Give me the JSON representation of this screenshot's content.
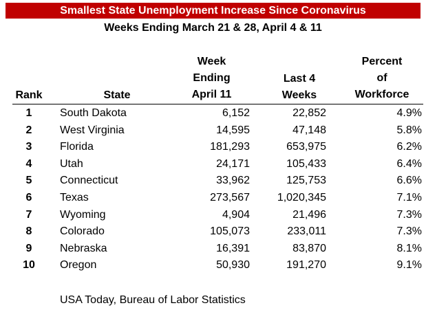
{
  "chart_data": {
    "type": "table",
    "title": "Smallest State Unemployment Increase Since Coronavirus",
    "subtitle": "Weeks Ending March 21 & 28, April 4 & 11",
    "headers": {
      "rank": "Rank",
      "state": "State",
      "week": [
        "Week",
        "Ending",
        "April 11"
      ],
      "last4": [
        "Last 4",
        "Weeks"
      ],
      "pct": [
        "Percent",
        "of",
        "Workforce"
      ]
    },
    "rows": [
      {
        "rank": "1",
        "state": "South Dakota",
        "week": "6,152",
        "last4": "22,852",
        "pct": "4.9%"
      },
      {
        "rank": "2",
        "state": "West Virginia",
        "week": "14,595",
        "last4": "47,148",
        "pct": "5.8%"
      },
      {
        "rank": "3",
        "state": "Florida",
        "week": "181,293",
        "last4": "653,975",
        "pct": "6.2%"
      },
      {
        "rank": "4",
        "state": "Utah",
        "week": "24,171",
        "last4": "105,433",
        "pct": "6.4%"
      },
      {
        "rank": "5",
        "state": "Connecticut",
        "week": "33,962",
        "last4": "125,753",
        "pct": "6.6%"
      },
      {
        "rank": "6",
        "state": "Texas",
        "week": "273,567",
        "last4": "1,020,345",
        "pct": "7.1%"
      },
      {
        "rank": "7",
        "state": "Wyoming",
        "week": "4,904",
        "last4": "21,496",
        "pct": "7.3%"
      },
      {
        "rank": "8",
        "state": "Colorado",
        "week": "105,073",
        "last4": "233,011",
        "pct": "7.3%"
      },
      {
        "rank": "9",
        "state": "Nebraska",
        "week": "16,391",
        "last4": "83,870",
        "pct": "8.1%"
      },
      {
        "rank": "10",
        "state": "Oregon",
        "week": "50,930",
        "last4": "191,270",
        "pct": "9.1%"
      }
    ],
    "source": "USA Today, Bureau of Labor Statistics",
    "colors": {
      "title_bg": "#c00000",
      "title_text": "#ffffff"
    }
  }
}
